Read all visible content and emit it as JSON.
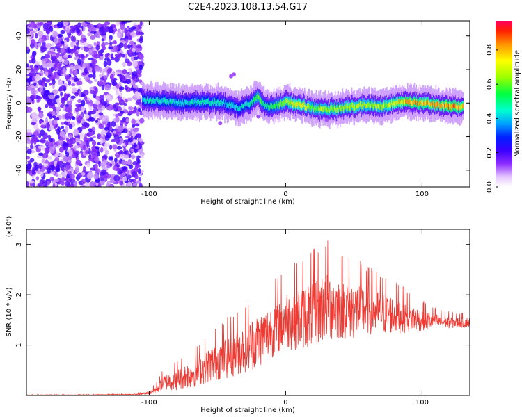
{
  "title": "C2E4.2023.108.13.54.G17",
  "chart_data": [
    {
      "type": "heatmap",
      "xlabel": "Height of straight line (km)",
      "ylabel": "Frequency (Hz)",
      "xlim": [
        -190,
        135
      ],
      "ylim": [
        -50,
        49
      ],
      "xticks": [
        -100,
        0,
        100
      ],
      "yticks": [
        -40,
        -20,
        0,
        20,
        40
      ],
      "colorbar": {
        "label": "Normalized spectral amplitude",
        "range": [
          0,
          0.97
        ],
        "ticks": [
          0.0,
          0.2,
          0.4,
          0.6,
          0.8
        ]
      },
      "noise_region_x": [
        -190,
        -105
      ],
      "signal_ridge": {
        "x": [
          -105,
          -90,
          -75,
          -60,
          -45,
          -35,
          -25,
          -20,
          -15,
          -5,
          0,
          10,
          20,
          30,
          40,
          50,
          60,
          70,
          80,
          90,
          100,
          110,
          120,
          130
        ],
        "freq_center": [
          2,
          1,
          0,
          1,
          0,
          -3,
          0,
          4,
          -2,
          -1,
          1,
          -1,
          -3,
          -4,
          -3,
          -2,
          -1,
          -2,
          0,
          1,
          0,
          -1,
          -2,
          -2
        ],
        "peak_amplitude": [
          0.5,
          0.55,
          0.5,
          0.55,
          0.5,
          0.5,
          0.55,
          0.7,
          0.55,
          0.65,
          0.75,
          0.85,
          0.7,
          0.75,
          0.75,
          0.8,
          0.75,
          0.75,
          0.85,
          0.95,
          0.9,
          0.9,
          0.95,
          0.9
        ]
      }
    },
    {
      "type": "line",
      "xlabel": "Height of straight line (km)",
      "ylabel": "SNR (10 * v/v)",
      "scale_label": "(x10⁴)",
      "xlim": [
        -190,
        135
      ],
      "ylim": [
        0,
        3.3
      ],
      "xticks": [
        -100,
        0,
        100
      ],
      "yticks": [
        1,
        2,
        3
      ],
      "color": "#ee3a33",
      "series": [
        {
          "x": [
            -190,
            -150,
            -110,
            -100,
            -95,
            -90,
            -80,
            -70,
            -60,
            -50,
            -40,
            -30,
            -20,
            -10,
            0,
            10,
            20,
            30,
            40,
            50,
            60,
            70,
            80,
            90,
            100,
            110,
            120,
            135
          ],
          "y": [
            0.01,
            0.01,
            0.02,
            0.05,
            0.12,
            0.25,
            0.32,
            0.42,
            0.55,
            0.7,
            0.8,
            0.95,
            1.1,
            1.3,
            1.5,
            1.55,
            1.65,
            1.8,
            1.75,
            1.7,
            1.7,
            1.65,
            1.6,
            1.55,
            1.5,
            1.48,
            1.45,
            1.45
          ],
          "spread": [
            0.005,
            0.005,
            0.01,
            0.03,
            0.08,
            0.15,
            0.22,
            0.28,
            0.32,
            0.4,
            0.45,
            0.5,
            0.55,
            0.55,
            0.6,
            0.65,
            0.7,
            0.75,
            0.65,
            0.6,
            0.5,
            0.45,
            0.38,
            0.3,
            0.22,
            0.15,
            0.12,
            0.1
          ]
        }
      ]
    }
  ]
}
